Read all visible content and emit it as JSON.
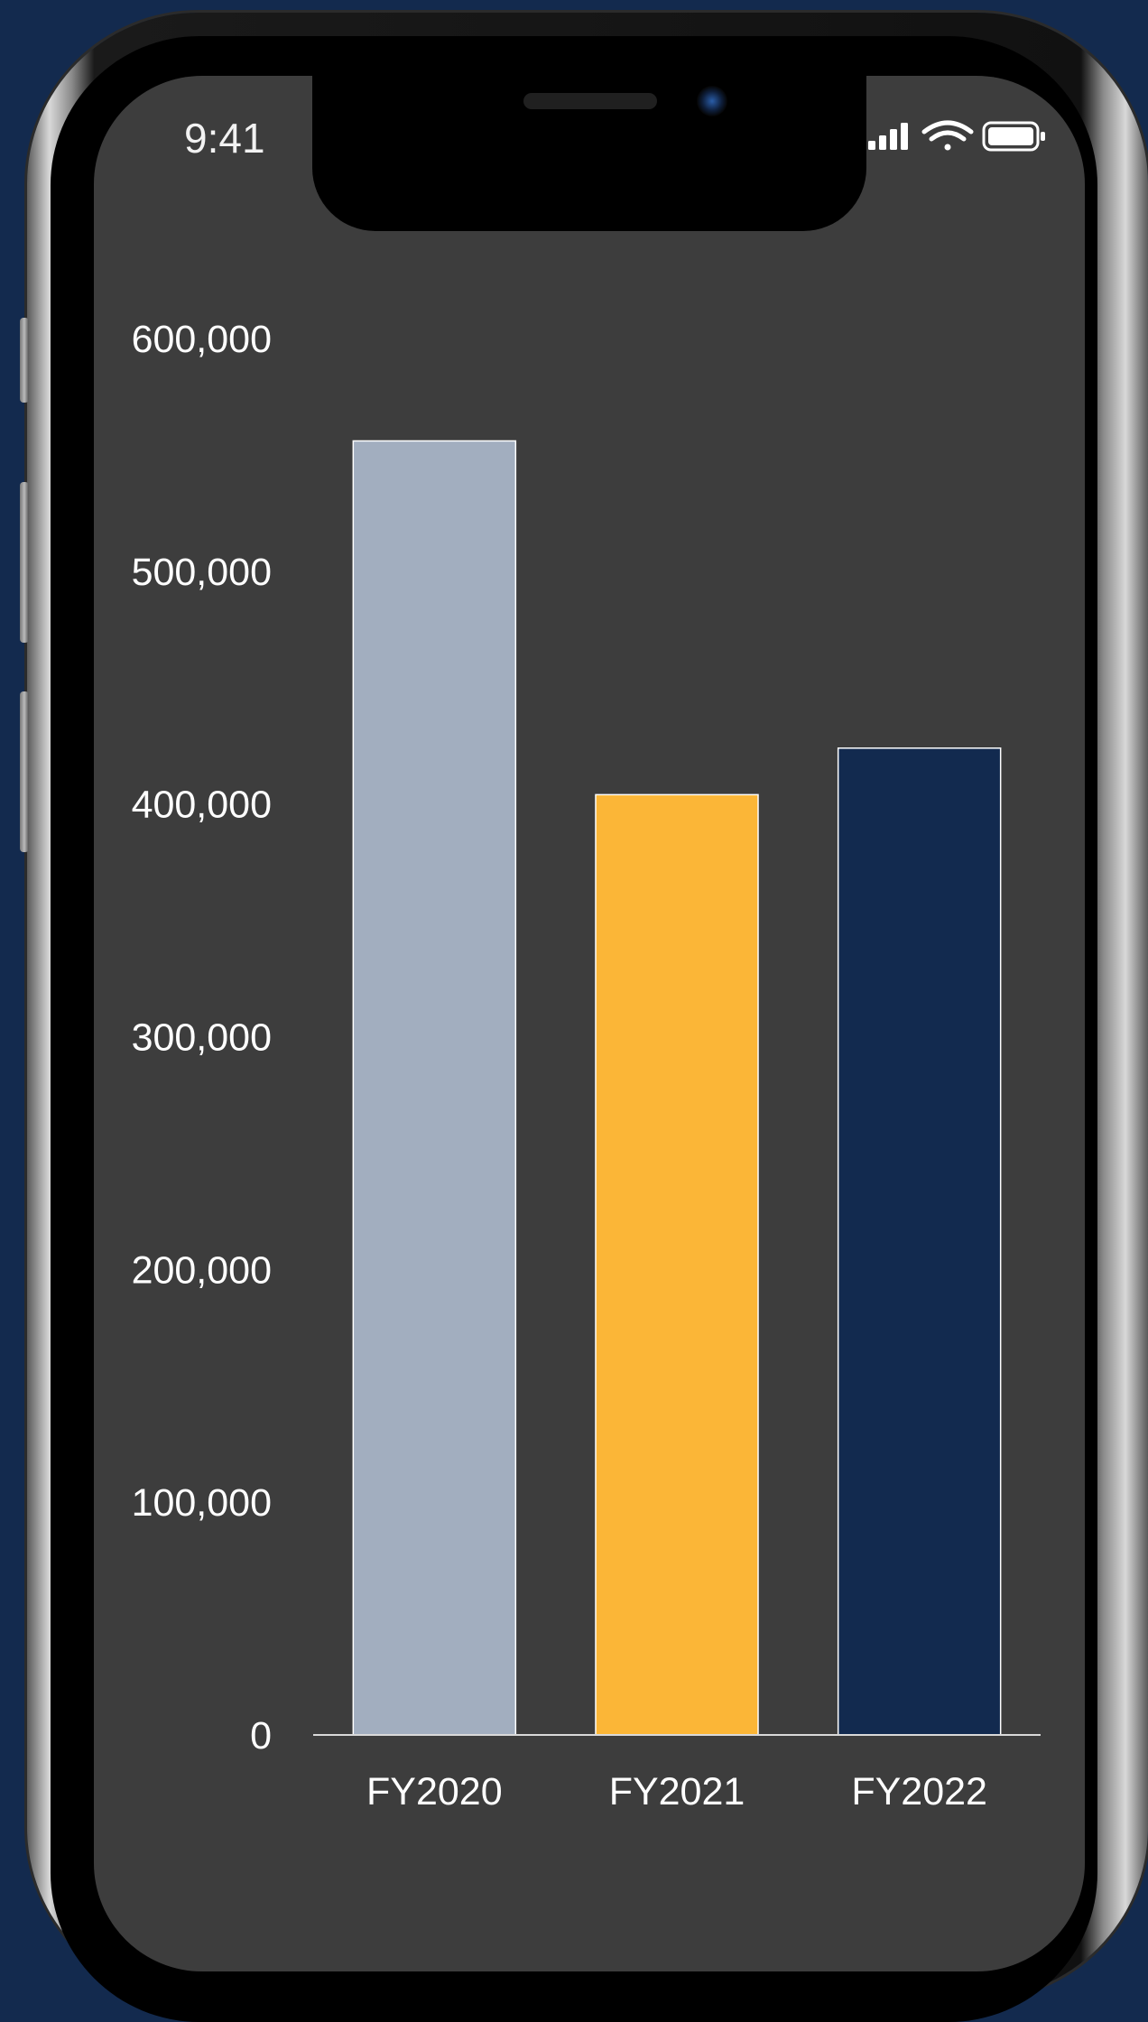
{
  "status_bar": {
    "time": "9:41",
    "icons": [
      "cellular-signal-icon",
      "wifi-icon",
      "battery-icon"
    ]
  },
  "chart_data": {
    "type": "bar",
    "categories": [
      "FY2020",
      "FY2021",
      "FY2022"
    ],
    "values": [
      556000,
      404000,
      424000
    ],
    "colors": [
      "#a2aebf",
      "#fbb637",
      "#122a4f"
    ],
    "bar_edge_color": "#ffffff",
    "title": "",
    "xlabel": "",
    "ylabel": "",
    "ylim": [
      0,
      600000
    ],
    "yticks": [
      0,
      100000,
      200000,
      300000,
      400000,
      500000,
      600000
    ],
    "ytick_labels": [
      "0",
      "100,000",
      "200,000",
      "300,000",
      "400,000",
      "500,000",
      "600,000"
    ],
    "grid": false,
    "legend": "none"
  }
}
